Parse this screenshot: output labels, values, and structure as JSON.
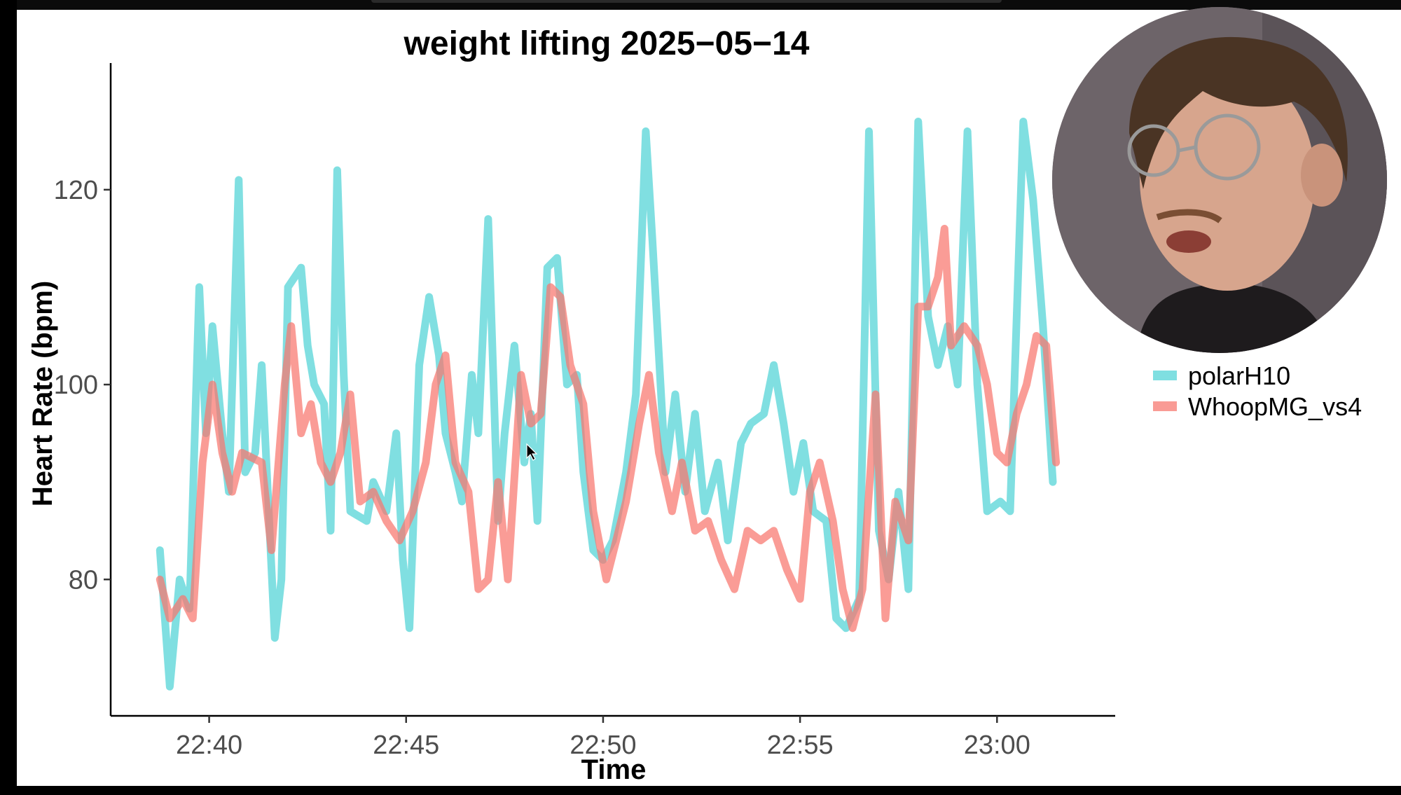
{
  "chart_data": {
    "type": "line",
    "title": "weight lifting 2025−05−14",
    "xlabel": "Time",
    "ylabel": "Heart Rate (bpm)",
    "x_range": [
      "22:37:30",
      "23:03:00"
    ],
    "ylim": [
      66,
      133
    ],
    "x_ticks": [
      "22:40",
      "22:45",
      "22:50",
      "22:55",
      "23:00"
    ],
    "y_ticks": [
      80,
      100,
      120
    ],
    "grid": false,
    "legend_position": "right",
    "series": [
      {
        "name": "polarH10",
        "color": "#4fd3d6",
        "points": [
          [
            "22:38:45",
            83
          ],
          [
            "22:39:00",
            69
          ],
          [
            "22:39:15",
            80
          ],
          [
            "22:39:30",
            77
          ],
          [
            "22:39:45",
            110
          ],
          [
            "22:39:55",
            95
          ],
          [
            "22:40:05",
            106
          ],
          [
            "22:40:20",
            95
          ],
          [
            "22:40:30",
            89
          ],
          [
            "22:40:45",
            121
          ],
          [
            "22:40:55",
            91
          ],
          [
            "22:41:10",
            93
          ],
          [
            "22:41:20",
            102
          ],
          [
            "22:41:40",
            74
          ],
          [
            "22:41:50",
            80
          ],
          [
            "22:42:00",
            110
          ],
          [
            "22:42:20",
            112
          ],
          [
            "22:42:30",
            104
          ],
          [
            "22:42:40",
            100
          ],
          [
            "22:42:55",
            98
          ],
          [
            "22:43:05",
            85
          ],
          [
            "22:43:15",
            122
          ],
          [
            "22:43:25",
            101
          ],
          [
            "22:43:35",
            87
          ],
          [
            "22:44:00",
            86
          ],
          [
            "22:44:10",
            90
          ],
          [
            "22:44:30",
            87
          ],
          [
            "22:44:45",
            95
          ],
          [
            "22:44:55",
            82
          ],
          [
            "22:45:05",
            75
          ],
          [
            "22:45:20",
            102
          ],
          [
            "22:45:35",
            109
          ],
          [
            "22:45:50",
            103
          ],
          [
            "22:46:00",
            95
          ],
          [
            "22:46:15",
            91
          ],
          [
            "22:46:25",
            88
          ],
          [
            "22:46:40",
            101
          ],
          [
            "22:46:50",
            95
          ],
          [
            "22:47:05",
            117
          ],
          [
            "22:47:20",
            86
          ],
          [
            "22:47:30",
            95
          ],
          [
            "22:47:45",
            104
          ],
          [
            "22:48:00",
            92
          ],
          [
            "22:48:10",
            97
          ],
          [
            "22:48:20",
            86
          ],
          [
            "22:48:35",
            112
          ],
          [
            "22:48:50",
            113
          ],
          [
            "22:49:05",
            100
          ],
          [
            "22:49:20",
            101
          ],
          [
            "22:49:30",
            91
          ],
          [
            "22:49:45",
            83
          ],
          [
            "22:50:00",
            82
          ],
          [
            "22:50:15",
            84
          ],
          [
            "22:50:35",
            91
          ],
          [
            "22:50:50",
            99
          ],
          [
            "22:51:05",
            126
          ],
          [
            "22:51:15",
            115
          ],
          [
            "22:51:35",
            91
          ],
          [
            "22:51:50",
            99
          ],
          [
            "22:52:05",
            89
          ],
          [
            "22:52:20",
            97
          ],
          [
            "22:52:35",
            87
          ],
          [
            "22:52:55",
            92
          ],
          [
            "22:53:10",
            84
          ],
          [
            "22:53:30",
            94
          ],
          [
            "22:53:45",
            96
          ],
          [
            "22:54:05",
            97
          ],
          [
            "22:54:20",
            102
          ],
          [
            "22:54:35",
            96
          ],
          [
            "22:54:50",
            89
          ],
          [
            "22:55:05",
            94
          ],
          [
            "22:55:20",
            87
          ],
          [
            "22:55:40",
            86
          ],
          [
            "22:55:55",
            76
          ],
          [
            "22:56:10",
            75
          ],
          [
            "22:56:30",
            78
          ],
          [
            "22:56:45",
            126
          ],
          [
            "22:57:00",
            85
          ],
          [
            "22:57:15",
            80
          ],
          [
            "22:57:30",
            89
          ],
          [
            "22:57:45",
            79
          ],
          [
            "22:58:00",
            127
          ],
          [
            "22:58:15",
            107
          ],
          [
            "22:58:30",
            102
          ],
          [
            "22:58:45",
            106
          ],
          [
            "22:59:00",
            100
          ],
          [
            "22:59:15",
            126
          ],
          [
            "22:59:30",
            100
          ],
          [
            "22:59:45",
            87
          ],
          [
            "23:00:05",
            88
          ],
          [
            "23:00:20",
            87
          ],
          [
            "23:00:40",
            127
          ],
          [
            "23:00:55",
            119
          ],
          [
            "23:01:10",
            106
          ],
          [
            "23:01:25",
            90
          ]
        ]
      },
      {
        "name": "WhoopMG_vs4",
        "color": "#f8766d",
        "points": [
          [
            "22:38:45",
            80
          ],
          [
            "22:39:00",
            76
          ],
          [
            "22:39:20",
            78
          ],
          [
            "22:39:35",
            76
          ],
          [
            "22:39:50",
            92
          ],
          [
            "22:40:05",
            100
          ],
          [
            "22:40:20",
            93
          ],
          [
            "22:40:35",
            89
          ],
          [
            "22:40:50",
            93
          ],
          [
            "22:41:20",
            92
          ],
          [
            "22:41:35",
            83
          ],
          [
            "22:41:55",
            100
          ],
          [
            "22:42:05",
            106
          ],
          [
            "22:42:20",
            95
          ],
          [
            "22:42:35",
            98
          ],
          [
            "22:42:50",
            92
          ],
          [
            "22:43:05",
            90
          ],
          [
            "22:43:20",
            93
          ],
          [
            "22:43:35",
            99
          ],
          [
            "22:43:50",
            88
          ],
          [
            "22:44:10",
            89
          ],
          [
            "22:44:30",
            86
          ],
          [
            "22:44:50",
            84
          ],
          [
            "22:45:10",
            87
          ],
          [
            "22:45:30",
            92
          ],
          [
            "22:45:45",
            100
          ],
          [
            "22:46:00",
            103
          ],
          [
            "22:46:15",
            92
          ],
          [
            "22:46:35",
            89
          ],
          [
            "22:46:50",
            79
          ],
          [
            "22:47:05",
            80
          ],
          [
            "22:47:20",
            90
          ],
          [
            "22:47:35",
            80
          ],
          [
            "22:47:55",
            101
          ],
          [
            "22:48:10",
            96
          ],
          [
            "22:48:25",
            97
          ],
          [
            "22:48:40",
            110
          ],
          [
            "22:48:55",
            109
          ],
          [
            "22:49:10",
            102
          ],
          [
            "22:49:30",
            98
          ],
          [
            "22:49:45",
            87
          ],
          [
            "22:50:05",
            80
          ],
          [
            "22:50:20",
            84
          ],
          [
            "22:50:35",
            88
          ],
          [
            "22:50:55",
            96
          ],
          [
            "22:51:10",
            101
          ],
          [
            "22:51:25",
            93
          ],
          [
            "22:51:45",
            87
          ],
          [
            "22:52:00",
            92
          ],
          [
            "22:52:20",
            85
          ],
          [
            "22:52:40",
            86
          ],
          [
            "22:53:00",
            82
          ],
          [
            "22:53:20",
            79
          ],
          [
            "22:53:40",
            85
          ],
          [
            "22:54:00",
            84
          ],
          [
            "22:54:20",
            85
          ],
          [
            "22:54:40",
            81
          ],
          [
            "22:55:00",
            78
          ],
          [
            "22:55:15",
            89
          ],
          [
            "22:55:30",
            92
          ],
          [
            "22:55:50",
            86
          ],
          [
            "22:56:05",
            79
          ],
          [
            "22:56:20",
            75
          ],
          [
            "22:56:35",
            79
          ],
          [
            "22:56:55",
            99
          ],
          [
            "22:57:10",
            76
          ],
          [
            "22:57:25",
            88
          ],
          [
            "22:57:45",
            84
          ],
          [
            "22:58:00",
            108
          ],
          [
            "22:58:15",
            108
          ],
          [
            "22:58:30",
            111
          ],
          [
            "22:58:40",
            116
          ],
          [
            "22:58:50",
            104
          ],
          [
            "22:59:10",
            106
          ],
          [
            "22:59:30",
            104
          ],
          [
            "22:59:45",
            100
          ],
          [
            "23:00:00",
            93
          ],
          [
            "23:00:15",
            92
          ],
          [
            "23:00:30",
            97
          ],
          [
            "23:00:45",
            100
          ],
          [
            "23:01:00",
            105
          ],
          [
            "23:01:15",
            104
          ],
          [
            "23:01:30",
            92
          ]
        ]
      }
    ]
  },
  "overlay": {
    "webcam_icon": "person-webcam-icon"
  }
}
